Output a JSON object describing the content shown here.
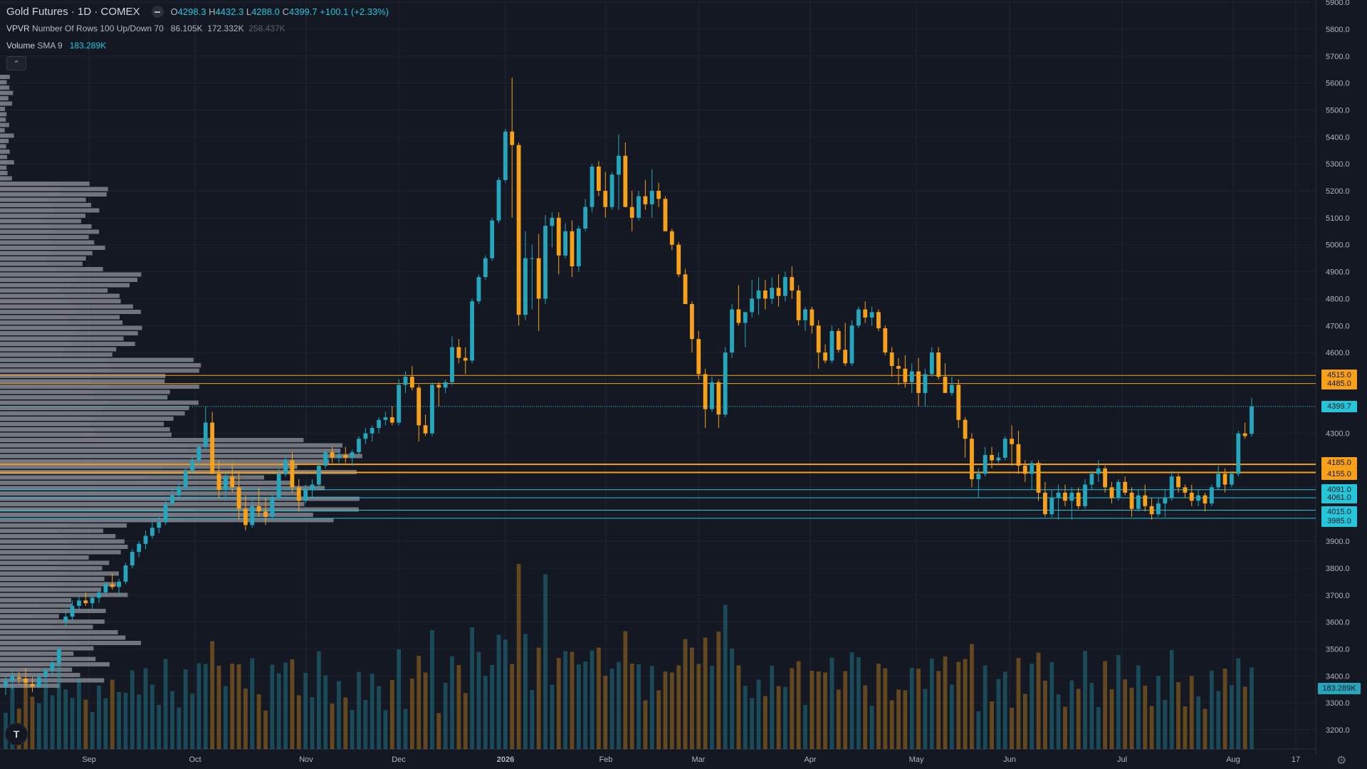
{
  "header": {
    "symbol_title": "Gold Futures · 1D · COMEX",
    "ohlc": [
      {
        "k": "O",
        "v": "4298.3"
      },
      {
        "k": "H",
        "v": "4432.3"
      },
      {
        "k": "L",
        "v": "4288.0"
      },
      {
        "k": "C",
        "v": "4399.7"
      }
    ],
    "change": "+100.1 (+2.33%)"
  },
  "indicators": {
    "vpvr": {
      "name": "VPVR",
      "params": "Number Of Rows 100 Up/Down 70",
      "v1": "86.105K",
      "v2": "172.332K",
      "v3": "258.437K"
    },
    "volume": {
      "name": "Volume",
      "params": "SMA 9",
      "v1": "183.289K"
    }
  },
  "collapse_icon": "chevron-up-icon",
  "colors": {
    "up": "#26a6bd",
    "down": "#f7a11a",
    "background": "#141823",
    "grid": "#1f2330",
    "axis_text": "#b2b5be"
  },
  "price_axis": {
    "ticks": [
      "5900.0",
      "5800.0",
      "5700.0",
      "5600.0",
      "5500.0",
      "5400.0",
      "5300.0",
      "5200.0",
      "5100.0",
      "5000.0",
      "4900.0",
      "4800.0",
      "4700.0",
      "4600.0",
      "4300.0",
      "3900.0",
      "3800.0",
      "3700.0",
      "3600.0",
      "3500.0",
      "3400.0",
      "3300.0",
      "3200.0"
    ]
  },
  "price_labels": [
    {
      "text": "4515.0",
      "value": 4515,
      "kind": "orange"
    },
    {
      "text": "4485.0",
      "value": 4485,
      "kind": "orange"
    },
    {
      "text": "4399.7",
      "value": 4399.7,
      "kind": "cyan"
    },
    {
      "text": "4185.0",
      "value": 4185,
      "kind": "orange"
    },
    {
      "text": "4155.0",
      "value": 4155,
      "kind": "orange"
    },
    {
      "text": "4091.0",
      "value": 4091,
      "kind": "cyan"
    },
    {
      "text": "4061.0",
      "value": 4061,
      "kind": "cyan"
    },
    {
      "text": "4015.0",
      "value": 4015,
      "kind": "cyan"
    },
    {
      "text": "3985.0",
      "value": 3985,
      "kind": "cyan"
    },
    {
      "text": "183.289K",
      "kind": "volume"
    }
  ],
  "time_axis": {
    "labels": [
      {
        "text": "Sep",
        "bold": false
      },
      {
        "text": "Oct",
        "bold": false
      },
      {
        "text": "Nov",
        "bold": false
      },
      {
        "text": "Dec",
        "bold": false
      },
      {
        "text": "2026",
        "bold": true
      },
      {
        "text": "Feb",
        "bold": false
      },
      {
        "text": "Mar",
        "bold": false
      },
      {
        "text": "Apr",
        "bold": false
      },
      {
        "text": "May",
        "bold": false
      },
      {
        "text": "Jun",
        "bold": false
      },
      {
        "text": "Jul",
        "bold": false
      },
      {
        "text": "Aug",
        "bold": false
      },
      {
        "text": "17",
        "bold": false
      }
    ]
  },
  "logo_text": "T",
  "settings_icon": "gear-icon",
  "chart_data": {
    "type": "candlestick",
    "price_range": [
      3200,
      5900
    ],
    "candles_approx_ohlc": [
      [
        3360,
        3400,
        3330,
        3380
      ],
      [
        3380,
        3420,
        3350,
        3400
      ],
      [
        3395,
        3415,
        3370,
        3390
      ],
      [
        3390,
        3430,
        3360,
        3375
      ],
      [
        3370,
        3395,
        3340,
        3360
      ],
      [
        3360,
        3410,
        3355,
        3395
      ],
      [
        3395,
        3430,
        3380,
        3420
      ],
      [
        3420,
        3460,
        3400,
        3450
      ],
      [
        3450,
        3510,
        3440,
        3500
      ],
      [
        3600,
        3650,
        3580,
        3620
      ],
      [
        3620,
        3680,
        3600,
        3660
      ],
      [
        3660,
        3700,
        3640,
        3680
      ],
      [
        3680,
        3710,
        3660,
        3670
      ],
      [
        3670,
        3700,
        3650,
        3690
      ],
      [
        3690,
        3720,
        3670,
        3710
      ],
      [
        3710,
        3750,
        3700,
        3740
      ],
      [
        3740,
        3780,
        3720,
        3730
      ],
      [
        3730,
        3760,
        3700,
        3750
      ],
      [
        3750,
        3820,
        3740,
        3810
      ],
      [
        3810,
        3870,
        3800,
        3860
      ],
      [
        3860,
        3900,
        3840,
        3890
      ],
      [
        3890,
        3940,
        3870,
        3920
      ],
      [
        3920,
        3980,
        3910,
        3950
      ],
      [
        3950,
        3990,
        3930,
        3970
      ],
      [
        3970,
        4050,
        3960,
        4040
      ],
      [
        4040,
        4090,
        4030,
        4070
      ],
      [
        4070,
        4120,
        4050,
        4100
      ],
      [
        4100,
        4170,
        4090,
        4160
      ],
      [
        4160,
        4220,
        4150,
        4200
      ],
      [
        4200,
        4260,
        4180,
        4250
      ],
      [
        4250,
        4400,
        4240,
        4340
      ],
      [
        4340,
        4380,
        4150,
        4150
      ],
      [
        4150,
        4200,
        4060,
        4090
      ],
      [
        4090,
        4150,
        4050,
        4140
      ],
      [
        4140,
        4190,
        4080,
        4100
      ],
      [
        4100,
        4160,
        3980,
        4020
      ],
      [
        4020,
        4070,
        3940,
        3960
      ],
      [
        3960,
        4060,
        3950,
        4030
      ],
      [
        4030,
        4100,
        3990,
        4010
      ],
      [
        4010,
        4060,
        3960,
        3990
      ],
      [
        3990,
        4080,
        3980,
        4060
      ],
      [
        4060,
        4170,
        4050,
        4150
      ],
      [
        4150,
        4220,
        4140,
        4200
      ],
      [
        4200,
        4230,
        4080,
        4100
      ],
      [
        4100,
        4130,
        4010,
        4050
      ],
      [
        4050,
        4110,
        4040,
        4090
      ],
      [
        4090,
        4130,
        4060,
        4110
      ],
      [
        4110,
        4190,
        4100,
        4180
      ],
      [
        4180,
        4240,
        4170,
        4230
      ],
      [
        4230,
        4250,
        4190,
        4210
      ],
      [
        4210,
        4240,
        4190,
        4220
      ],
      [
        4220,
        4250,
        4190,
        4210
      ],
      [
        4210,
        4240,
        4180,
        4230
      ],
      [
        4230,
        4290,
        4220,
        4280
      ],
      [
        4280,
        4320,
        4260,
        4300
      ],
      [
        4300,
        4330,
        4270,
        4320
      ],
      [
        4320,
        4360,
        4300,
        4350
      ],
      [
        4350,
        4380,
        4330,
        4360
      ],
      [
        4360,
        4400,
        4330,
        4340
      ],
      [
        4340,
        4500,
        4330,
        4480
      ],
      [
        4480,
        4530,
        4450,
        4510
      ],
      [
        4510,
        4550,
        4460,
        4470
      ],
      [
        4470,
        4480,
        4270,
        4330
      ],
      [
        4330,
        4370,
        4290,
        4300
      ],
      [
        4300,
        4490,
        4290,
        4480
      ],
      [
        4480,
        4490,
        4400,
        4470
      ],
      [
        4470,
        4500,
        4450,
        4490
      ],
      [
        4490,
        4660,
        4480,
        4620
      ],
      [
        4620,
        4650,
        4560,
        4580
      ],
      [
        4580,
        4620,
        4520,
        4570
      ],
      [
        4570,
        4800,
        4560,
        4790
      ],
      [
        4790,
        4890,
        4780,
        4880
      ],
      [
        4880,
        4960,
        4870,
        4950
      ],
      [
        4950,
        5100,
        4940,
        5090
      ],
      [
        5090,
        5250,
        5080,
        5240
      ],
      [
        5240,
        5430,
        5230,
        5420
      ],
      [
        5420,
        5620,
        5100,
        5370
      ],
      [
        5370,
        5380,
        4700,
        4740
      ],
      [
        4740,
        5050,
        4720,
        4950
      ],
      [
        4950,
        5000,
        4760,
        4950
      ],
      [
        4950,
        5040,
        4680,
        4800
      ],
      [
        4800,
        5110,
        4780,
        5070
      ],
      [
        5070,
        5120,
        4990,
        5100
      ],
      [
        5100,
        5120,
        4890,
        4960
      ],
      [
        4960,
        5080,
        4950,
        5050
      ],
      [
        5050,
        5090,
        4880,
        4920
      ],
      [
        4920,
        5070,
        4900,
        5060
      ],
      [
        5060,
        5170,
        5050,
        5140
      ],
      [
        5140,
        5300,
        5120,
        5290
      ],
      [
        5290,
        5310,
        5180,
        5200
      ],
      [
        5200,
        5270,
        5100,
        5140
      ],
      [
        5140,
        5270,
        5130,
        5260
      ],
      [
        5260,
        5410,
        5130,
        5330
      ],
      [
        5330,
        5380,
        5140,
        5140
      ],
      [
        5140,
        5200,
        5050,
        5100
      ],
      [
        5100,
        5200,
        5090,
        5180
      ],
      [
        5180,
        5240,
        5130,
        5150
      ],
      [
        5150,
        5280,
        5100,
        5200
      ],
      [
        5200,
        5230,
        5140,
        5170
      ],
      [
        5170,
        5180,
        5080,
        5050
      ],
      [
        5050,
        5060,
        4980,
        5000
      ],
      [
        5000,
        5010,
        4880,
        4890
      ],
      [
        4890,
        4910,
        4780,
        4780
      ],
      [
        4780,
        4790,
        4600,
        4650
      ],
      [
        4650,
        4680,
        4500,
        4520
      ],
      [
        4520,
        4540,
        4320,
        4390
      ],
      [
        4390,
        4510,
        4380,
        4490
      ],
      [
        4490,
        4500,
        4320,
        4370
      ],
      [
        4370,
        4620,
        4360,
        4600
      ],
      [
        4600,
        4780,
        4580,
        4760
      ],
      [
        4760,
        4850,
        4700,
        4710
      ],
      [
        4710,
        4740,
        4620,
        4750
      ],
      [
        4750,
        4870,
        4730,
        4800
      ],
      [
        4800,
        4880,
        4740,
        4830
      ],
      [
        4830,
        4870,
        4760,
        4800
      ],
      [
        4800,
        4880,
        4780,
        4840
      ],
      [
        4840,
        4890,
        4770,
        4810
      ],
      [
        4810,
        4900,
        4790,
        4880
      ],
      [
        4880,
        4920,
        4800,
        4830
      ],
      [
        4830,
        4850,
        4700,
        4720
      ],
      [
        4720,
        4770,
        4680,
        4760
      ],
      [
        4760,
        4770,
        4670,
        4700
      ],
      [
        4700,
        4720,
        4540,
        4600
      ],
      [
        4600,
        4630,
        4560,
        4570
      ],
      [
        4570,
        4700,
        4560,
        4680
      ],
      [
        4680,
        4690,
        4600,
        4610
      ],
      [
        4610,
        4710,
        4550,
        4560
      ],
      [
        4560,
        4720,
        4550,
        4700
      ],
      [
        4700,
        4770,
        4690,
        4760
      ],
      [
        4760,
        4790,
        4710,
        4730
      ],
      [
        4730,
        4770,
        4700,
        4750
      ],
      [
        4750,
        4760,
        4680,
        4690
      ],
      [
        4690,
        4700,
        4590,
        4600
      ],
      [
        4600,
        4620,
        4510,
        4550
      ],
      [
        4550,
        4580,
        4480,
        4540
      ],
      [
        4540,
        4590,
        4470,
        4490
      ],
      [
        4490,
        4560,
        4450,
        4530
      ],
      [
        4530,
        4580,
        4400,
        4450
      ],
      [
        4450,
        4540,
        4400,
        4520
      ],
      [
        4520,
        4620,
        4510,
        4600
      ],
      [
        4600,
        4620,
        4500,
        4510
      ],
      [
        4510,
        4560,
        4450,
        4450
      ],
      [
        4450,
        4510,
        4440,
        4480
      ],
      [
        4480,
        4500,
        4320,
        4350
      ],
      [
        4350,
        4360,
        4210,
        4280
      ],
      [
        4280,
        4300,
        4100,
        4130
      ],
      [
        4130,
        4170,
        4060,
        4150
      ],
      [
        4150,
        4250,
        4140,
        4220
      ],
      [
        4220,
        4250,
        4170,
        4200
      ],
      [
        4200,
        4230,
        4190,
        4210
      ],
      [
        4210,
        4290,
        4200,
        4280
      ],
      [
        4280,
        4330,
        4180,
        4260
      ],
      [
        4260,
        4310,
        4150,
        4180
      ],
      [
        4180,
        4200,
        4120,
        4150
      ],
      [
        4150,
        4200,
        4090,
        4190
      ],
      [
        4190,
        4200,
        4050,
        4080
      ],
      [
        4080,
        4120,
        3990,
        4000
      ],
      [
        4000,
        4090,
        3990,
        4060
      ],
      [
        4060,
        4110,
        3980,
        4080
      ],
      [
        4080,
        4110,
        4030,
        4050
      ],
      [
        4050,
        4100,
        3980,
        4080
      ],
      [
        4080,
        4100,
        4020,
        4030
      ],
      [
        4030,
        4130,
        4020,
        4110
      ],
      [
        4110,
        4160,
        4090,
        4150
      ],
      [
        4150,
        4200,
        4120,
        4170
      ],
      [
        4170,
        4180,
        4080,
        4100
      ],
      [
        4100,
        4120,
        4040,
        4060
      ],
      [
        4060,
        4130,
        4050,
        4120
      ],
      [
        4120,
        4140,
        4070,
        4080
      ],
      [
        4080,
        4100,
        3990,
        4020
      ],
      [
        4020,
        4090,
        4010,
        4070
      ],
      [
        4070,
        4110,
        4010,
        4030
      ],
      [
        4030,
        4060,
        3980,
        4000
      ],
      [
        4000,
        4060,
        3990,
        4040
      ],
      [
        4040,
        4090,
        3990,
        4060
      ],
      [
        4060,
        4160,
        4050,
        4140
      ],
      [
        4140,
        4150,
        4080,
        4100
      ],
      [
        4100,
        4110,
        4060,
        4080
      ],
      [
        4080,
        4110,
        4030,
        4050
      ],
      [
        4050,
        4090,
        4030,
        4070
      ],
      [
        4070,
        4080,
        4010,
        4040
      ],
      [
        4040,
        4110,
        4030,
        4100
      ],
      [
        4100,
        4180,
        4090,
        4150
      ],
      [
        4150,
        4170,
        4080,
        4110
      ],
      [
        4110,
        4160,
        4100,
        4150
      ],
      [
        4150,
        4310,
        4140,
        4300
      ],
      [
        4300,
        4340,
        4280,
        4290
      ],
      [
        4298.3,
        4432.3,
        4288.0,
        4399.7
      ]
    ]
  }
}
